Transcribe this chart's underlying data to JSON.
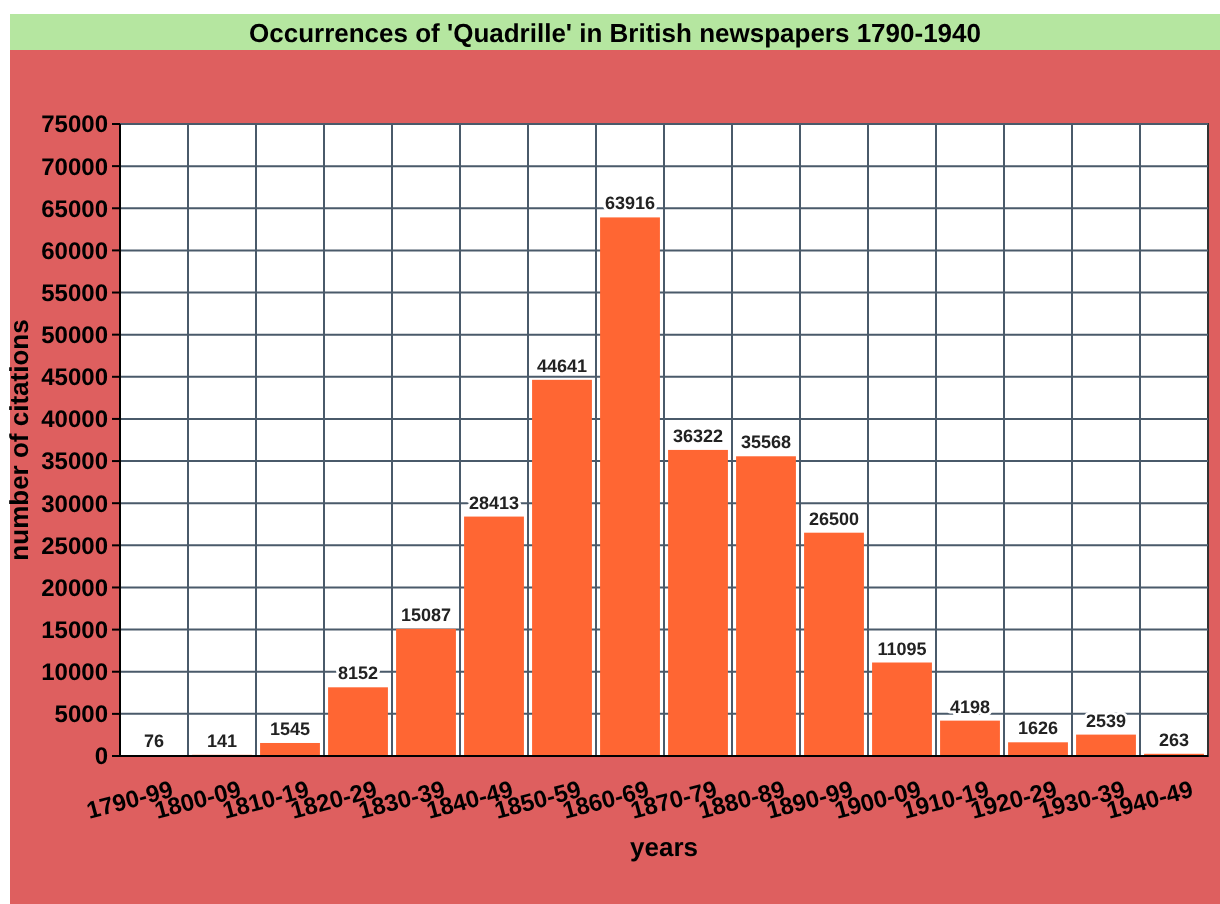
{
  "chart_data": {
    "type": "bar",
    "title": "Occurrences of 'Quadrille' in British newspapers 1790-1940",
    "xlabel": "years",
    "ylabel": "number of citations",
    "categories": [
      "1790-99",
      "1800-09",
      "1810-19",
      "1820-29",
      "1830-39",
      "1840-49",
      "1850-59",
      "1860-69",
      "1870-79",
      "1880-89",
      "1890-99",
      "1900-09",
      "1910-19",
      "1920-29",
      "1930-39",
      "1940-49"
    ],
    "values": [
      76,
      141,
      1545,
      8152,
      15087,
      28413,
      44641,
      63916,
      36322,
      35568,
      26500,
      11095,
      4198,
      1626,
      2539,
      263
    ],
    "color": "#ff6633",
    "ylim": [
      0,
      75000
    ],
    "yticks": [
      0,
      5000,
      10000,
      15000,
      20000,
      25000,
      30000,
      35000,
      40000,
      45000,
      50000,
      55000,
      60000,
      65000,
      70000,
      75000
    ],
    "grid": true,
    "data_labels": true
  }
}
